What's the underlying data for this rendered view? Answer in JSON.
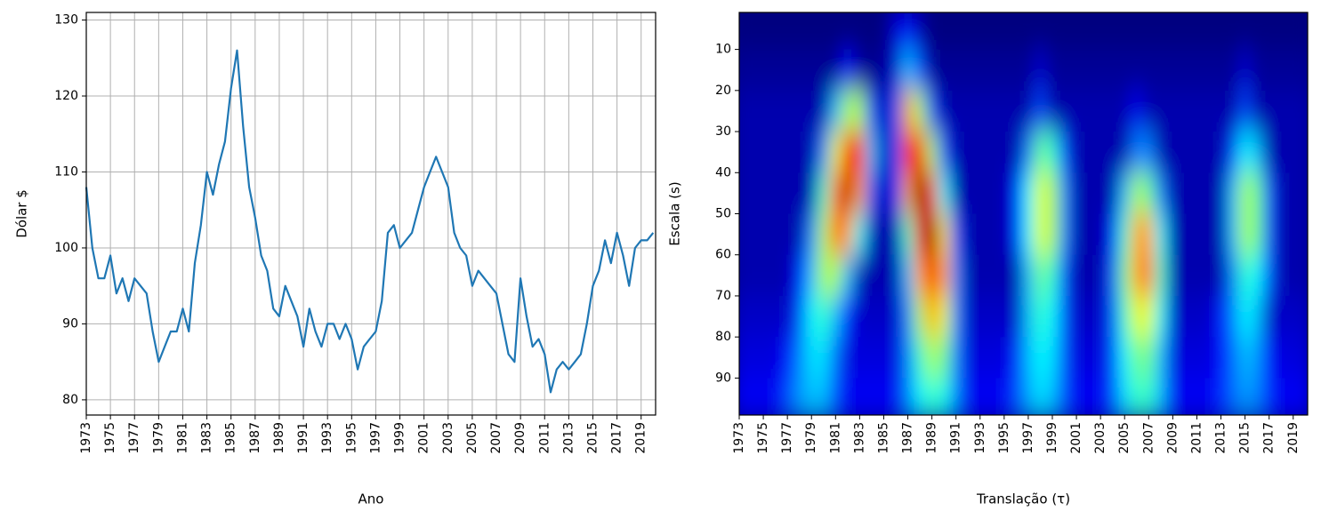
{
  "chart_data": [
    {
      "type": "line",
      "xlabel": "Ano",
      "ylabel": "Dólar $",
      "color": "#1f77b4",
      "grid": true,
      "xlim": [
        1973,
        2020.2
      ],
      "ylim": [
        78,
        131
      ],
      "xticks": [
        1973,
        1975,
        1977,
        1979,
        1981,
        1983,
        1985,
        1987,
        1989,
        1991,
        1993,
        1995,
        1997,
        1999,
        2001,
        2003,
        2005,
        2007,
        2009,
        2011,
        2013,
        2015,
        2017,
        2019
      ],
      "yticks": [
        80,
        90,
        100,
        110,
        120,
        130
      ],
      "x": [
        1973,
        1973.5,
        1974,
        1974.5,
        1975,
        1975.5,
        1976,
        1976.5,
        1977,
        1977.5,
        1978,
        1978.5,
        1979,
        1979.5,
        1980,
        1980.5,
        1981,
        1981.5,
        1982,
        1982.5,
        1983,
        1983.5,
        1984,
        1984.5,
        1985,
        1985.5,
        1986,
        1986.5,
        1987,
        1987.5,
        1988,
        1988.5,
        1989,
        1989.5,
        1990,
        1990.5,
        1991,
        1991.5,
        1992,
        1992.5,
        1993,
        1993.5,
        1994,
        1994.5,
        1995,
        1995.5,
        1996,
        1996.5,
        1997,
        1997.5,
        1998,
        1998.5,
        1999,
        1999.5,
        2000,
        2000.5,
        2001,
        2001.5,
        2002,
        2002.5,
        2003,
        2003.5,
        2004,
        2004.5,
        2005,
        2005.5,
        2006,
        2006.5,
        2007,
        2007.5,
        2008,
        2008.5,
        2009,
        2009.5,
        2010,
        2010.5,
        2011,
        2011.5,
        2012,
        2012.5,
        2013,
        2013.5,
        2014,
        2014.5,
        2015,
        2015.5,
        2016,
        2016.5,
        2017,
        2017.5,
        2018,
        2018.5,
        2019,
        2019.5,
        2020
      ],
      "values": [
        108,
        100,
        96,
        96,
        99,
        94,
        96,
        93,
        96,
        95,
        94,
        89,
        85,
        87,
        89,
        89,
        92,
        89,
        98,
        103,
        110,
        107,
        111,
        114,
        121,
        126,
        116,
        108,
        104,
        99,
        97,
        92,
        91,
        95,
        93,
        91,
        87,
        92,
        89,
        87,
        90,
        90,
        88,
        90,
        88,
        84,
        87,
        88,
        89,
        93,
        102,
        103,
        100,
        101,
        102,
        105,
        108,
        110,
        112,
        110,
        108,
        102,
        100,
        99,
        95,
        97,
        96,
        95,
        94,
        90,
        86,
        85,
        96,
        91,
        87,
        88,
        86,
        81,
        84,
        85,
        84,
        85,
        86,
        90,
        95,
        97,
        101,
        98,
        102,
        99,
        95,
        100,
        101,
        101,
        102
      ]
    },
    {
      "type": "heatmap",
      "xlabel": "Translação (τ)",
      "ylabel": "Escala (s)",
      "colormap": "jet",
      "xlim": [
        1973,
        2020.2
      ],
      "ylim": [
        99,
        1
      ],
      "xticks": [
        1973,
        1975,
        1977,
        1979,
        1981,
        1983,
        1985,
        1987,
        1989,
        1991,
        1993,
        1995,
        1997,
        1999,
        2001,
        2003,
        2005,
        2007,
        2009,
        2011,
        2013,
        2015,
        2017,
        2019
      ],
      "yticks": [
        10,
        20,
        30,
        40,
        50,
        60,
        70,
        80,
        90
      ],
      "x": [
        1973,
        1974,
        1975,
        1976,
        1977,
        1978,
        1979,
        1980,
        1981,
        1982,
        1983,
        1984,
        1985,
        1986,
        1987,
        1988,
        1989,
        1990,
        1991,
        1992,
        1993,
        1994,
        1995,
        1996,
        1997,
        1998,
        1999,
        2000,
        2001,
        2002,
        2003,
        2004,
        2005,
        2006,
        2007,
        2008,
        2009,
        2010,
        2011,
        2012,
        2013,
        2014,
        2015,
        2016,
        2017,
        2018,
        2019,
        2020
      ],
      "y": [
        5,
        15,
        25,
        35,
        45,
        55,
        65,
        75,
        85,
        95
      ],
      "z": [
        [
          8,
          8,
          8,
          8,
          8,
          8,
          8,
          8,
          8,
          8,
          8,
          8,
          8,
          15,
          20,
          12,
          8,
          8,
          8,
          8,
          8,
          8,
          8,
          8,
          8,
          8,
          8,
          8,
          8,
          8,
          8,
          8,
          8,
          8,
          8,
          8,
          8,
          8,
          8,
          8,
          8,
          8,
          8,
          8,
          8,
          8,
          8,
          8
        ],
        [
          10,
          10,
          10,
          10,
          10,
          10,
          10,
          10,
          10,
          20,
          10,
          10,
          10,
          15,
          35,
          25,
          10,
          10,
          10,
          10,
          10,
          10,
          10,
          10,
          10,
          15,
          10,
          10,
          10,
          10,
          10,
          10,
          10,
          10,
          10,
          10,
          10,
          10,
          10,
          10,
          10,
          10,
          15,
          10,
          10,
          10,
          10,
          10
        ],
        [
          12,
          12,
          12,
          12,
          12,
          12,
          12,
          12,
          35,
          55,
          55,
          25,
          12,
          25,
          70,
          55,
          25,
          12,
          12,
          12,
          12,
          12,
          12,
          12,
          12,
          25,
          12,
          12,
          12,
          12,
          12,
          12,
          12,
          18,
          12,
          12,
          12,
          12,
          12,
          12,
          12,
          12,
          25,
          12,
          12,
          12,
          12,
          12
        ],
        [
          12,
          12,
          12,
          12,
          12,
          12,
          12,
          30,
          60,
          85,
          80,
          35,
          12,
          25,
          80,
          85,
          55,
          25,
          12,
          12,
          12,
          12,
          12,
          12,
          30,
          50,
          45,
          25,
          12,
          12,
          12,
          12,
          12,
          30,
          30,
          12,
          12,
          12,
          12,
          12,
          12,
          25,
          40,
          35,
          12,
          12,
          12,
          12
        ],
        [
          12,
          12,
          12,
          12,
          12,
          12,
          12,
          45,
          75,
          90,
          70,
          25,
          12,
          20,
          70,
          95,
          80,
          40,
          12,
          12,
          12,
          12,
          12,
          20,
          40,
          60,
          55,
          30,
          12,
          12,
          12,
          12,
          35,
          55,
          50,
          30,
          12,
          12,
          12,
          12,
          12,
          35,
          55,
          50,
          25,
          12,
          12,
          12
        ],
        [
          12,
          12,
          12,
          12,
          12,
          12,
          30,
          55,
          75,
          70,
          40,
          12,
          12,
          12,
          45,
          85,
          95,
          65,
          25,
          12,
          12,
          12,
          12,
          20,
          40,
          60,
          55,
          30,
          12,
          12,
          12,
          20,
          45,
          70,
          70,
          40,
          12,
          12,
          12,
          12,
          12,
          35,
          55,
          50,
          25,
          12,
          12,
          12
        ],
        [
          12,
          12,
          12,
          12,
          12,
          20,
          35,
          55,
          55,
          35,
          12,
          12,
          12,
          12,
          35,
          70,
          85,
          70,
          30,
          12,
          12,
          12,
          12,
          12,
          35,
          50,
          45,
          25,
          12,
          12,
          12,
          25,
          50,
          70,
          75,
          45,
          12,
          12,
          12,
          12,
          12,
          30,
          45,
          40,
          25,
          12,
          12,
          12
        ],
        [
          14,
          14,
          14,
          14,
          14,
          25,
          40,
          45,
          35,
          20,
          14,
          14,
          14,
          14,
          30,
          55,
          70,
          60,
          30,
          14,
          14,
          14,
          14,
          14,
          35,
          45,
          40,
          25,
          14,
          14,
          14,
          25,
          45,
          60,
          60,
          40,
          14,
          14,
          14,
          14,
          20,
          30,
          40,
          35,
          14,
          14,
          14,
          14
        ],
        [
          16,
          16,
          16,
          16,
          20,
          30,
          38,
          38,
          28,
          16,
          16,
          16,
          16,
          16,
          30,
          45,
          55,
          50,
          30,
          16,
          16,
          16,
          16,
          22,
          35,
          40,
          38,
          25,
          16,
          16,
          16,
          25,
          40,
          50,
          50,
          35,
          16,
          16,
          16,
          16,
          20,
          28,
          35,
          32,
          20,
          16,
          16,
          16
        ],
        [
          18,
          18,
          18,
          18,
          25,
          32,
          35,
          35,
          25,
          18,
          18,
          18,
          18,
          18,
          30,
          40,
          45,
          42,
          30,
          18,
          18,
          18,
          18,
          25,
          33,
          38,
          35,
          25,
          18,
          18,
          18,
          25,
          38,
          45,
          45,
          35,
          18,
          18,
          18,
          18,
          22,
          28,
          32,
          30,
          22,
          18,
          18,
          18
        ]
      ]
    }
  ]
}
